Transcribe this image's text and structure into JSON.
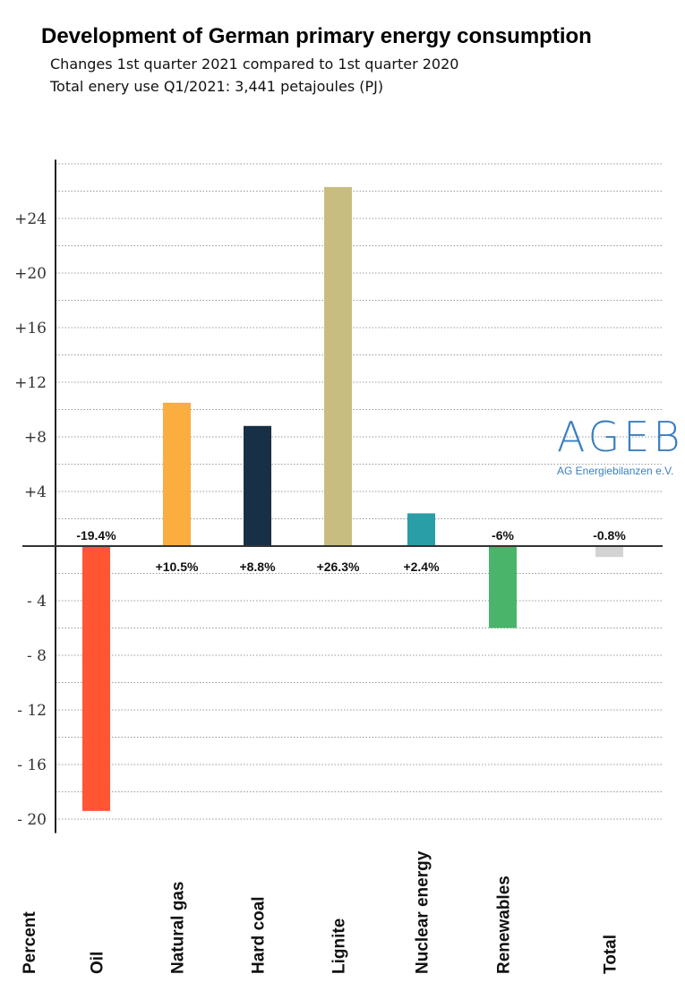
{
  "chart_data": {
    "type": "bar",
    "title": "Development of German primary energy consumption",
    "subtitles": [
      "Changes 1st quarter 2021 compared to 1st quarter 2020",
      "Total enery use Q1/2021: 3,441 petajoules (PJ)"
    ],
    "ylabel": "Percent",
    "categories": [
      "Oil",
      "Natural gas",
      "Hard coal",
      "Lignite",
      "Nuclear energy",
      "Renewables",
      "Total"
    ],
    "values": [
      -19.4,
      10.5,
      8.8,
      26.3,
      2.4,
      -6,
      -0.8
    ],
    "data_labels": [
      "-19.4%",
      "+10.5%",
      "+8.8%",
      "+26.3%",
      "+2.4%",
      "-6%",
      "-0.8%"
    ],
    "colors": [
      "#ff5533",
      "#fbad3f",
      "#173046",
      "#c8bd80",
      "#2a9ea7",
      "#49b46a",
      "#d3d3d3"
    ],
    "yticks": [
      24,
      20,
      16,
      12,
      8,
      4,
      -4,
      -8,
      -12,
      -16,
      -20
    ],
    "ytick_labels": [
      "+24",
      "+20",
      "+16",
      "+12",
      "+8",
      "+4",
      "- 4",
      "- 8",
      "- 12",
      "- 16",
      "- 20"
    ],
    "ylim": [
      -20.5,
      28.3
    ],
    "grid": true,
    "grid_step": 2
  },
  "logo": {
    "main": "AGEB",
    "sub": "AG Energiebilanzen e.V."
  }
}
